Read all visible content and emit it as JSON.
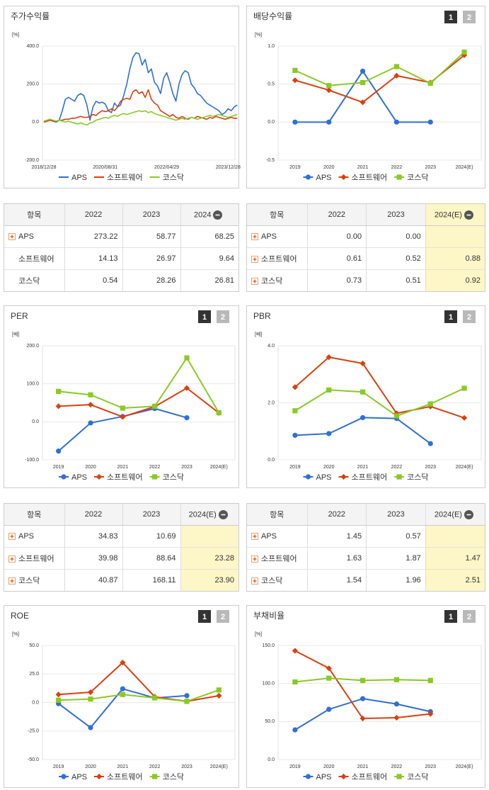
{
  "chart_data": [
    {
      "type": "line",
      "title": "주가수익률",
      "unit": "[%]",
      "categories": [
        "2018/12/28",
        null,
        null,
        null,
        null,
        null,
        null,
        null,
        null,
        null,
        null,
        null,
        null,
        null,
        null,
        null,
        null,
        null,
        null,
        null,
        "2020/08/31",
        null,
        null,
        null,
        null,
        null,
        null,
        null,
        null,
        null,
        null,
        null,
        null,
        null,
        null,
        null,
        null,
        null,
        null,
        null,
        "2022/04/29",
        null,
        null,
        null,
        null,
        null,
        null,
        null,
        null,
        null,
        null,
        null,
        null,
        null,
        null,
        null,
        null,
        null,
        null,
        null,
        "2023/12/28",
        null,
        null,
        null
      ],
      "series": [
        {
          "name": "APS",
          "color": "#2f6fd6",
          "values": [
            0,
            5,
            10,
            5,
            0,
            10,
            60,
            120,
            130,
            120,
            110,
            140,
            150,
            140,
            90,
            10,
            80,
            110,
            100,
            105,
            95,
            60,
            50,
            100,
            80,
            90,
            140,
            200,
            280,
            340,
            365,
            360,
            300,
            330,
            260,
            280,
            210,
            190,
            150,
            230,
            260,
            210,
            150,
            110,
            200,
            250,
            270,
            260,
            200,
            180,
            150,
            140,
            120,
            100,
            90,
            80,
            70,
            60,
            40,
            50,
            70,
            60,
            80,
            90
          ]
        },
        {
          "name": "소프트웨어",
          "color": "#d9400f",
          "values": [
            0,
            5,
            10,
            5,
            5,
            10,
            10,
            15,
            15,
            20,
            20,
            25,
            30,
            25,
            25,
            30,
            40,
            35,
            50,
            60,
            55,
            60,
            70,
            60,
            80,
            110,
            120,
            125,
            120,
            160,
            170,
            150,
            160,
            130,
            170,
            120,
            100,
            90,
            60,
            50,
            40,
            30,
            40,
            25,
            20,
            30,
            20,
            15,
            25,
            20,
            30,
            25,
            20,
            15,
            25,
            20,
            30,
            25,
            20,
            15,
            20,
            25,
            20,
            20
          ]
        },
        {
          "name": "코스닥",
          "color": "#8ac926",
          "values": [
            5,
            10,
            15,
            10,
            5,
            10,
            5,
            0,
            5,
            0,
            -5,
            -10,
            -5,
            -10,
            -15,
            -5,
            0,
            10,
            15,
            20,
            25,
            20,
            30,
            35,
            30,
            40,
            45,
            40,
            45,
            50,
            55,
            60,
            55,
            60,
            50,
            55,
            45,
            40,
            35,
            30,
            25,
            20,
            15,
            10,
            15,
            20,
            15,
            20,
            25,
            20,
            15,
            20,
            25,
            30,
            35,
            30,
            35,
            40,
            35,
            30,
            25,
            30,
            35,
            40
          ]
        }
      ],
      "ylim": [
        -200,
        400
      ],
      "yticks": [
        {
          "value": -200,
          "label": "-200.0"
        },
        {
          "value": 0,
          "label": "0.0"
        },
        {
          "value": 200,
          "label": "200.0"
        },
        {
          "value": 400,
          "label": "400.0"
        }
      ],
      "grid": true
    },
    {
      "type": "line",
      "title": "배당수익률",
      "unit": "[%]",
      "buttons": [
        "1",
        "2"
      ],
      "categories": [
        "2019",
        "2020",
        "2021",
        "2022",
        "2023",
        "2024(E)"
      ],
      "series": [
        {
          "name": "APS",
          "color": "#2f6fd6",
          "marker": "circle",
          "values": [
            0.0,
            0.0,
            0.67,
            0.0,
            0.0,
            null
          ]
        },
        {
          "name": "소프트웨어",
          "color": "#d9400f",
          "marker": "diamond",
          "values": [
            0.55,
            0.42,
            0.26,
            0.61,
            0.52,
            0.88
          ]
        },
        {
          "name": "코스닥",
          "color": "#8ac926",
          "marker": "square",
          "values": [
            0.68,
            0.48,
            0.52,
            0.73,
            0.51,
            0.92
          ]
        }
      ],
      "ylim": [
        -0.5,
        1.0
      ],
      "yticks": [
        -0.5,
        {
          "value": 0,
          "label": "0.0"
        },
        0.5,
        {
          "value": 1,
          "label": "1.0"
        }
      ],
      "grid": true
    },
    {
      "type": "line",
      "title": "PER",
      "unit": "[배]",
      "buttons": [
        "1",
        "2"
      ],
      "categories": [
        "2019",
        "2020",
        "2021",
        "2022",
        "2023",
        "2024(E)"
      ],
      "series": [
        {
          "name": "APS",
          "color": "#2f6fd6",
          "marker": "circle",
          "values": [
            -77,
            -3,
            14,
            34.83,
            10.69,
            null
          ]
        },
        {
          "name": "소프트웨어",
          "color": "#d9400f",
          "marker": "diamond",
          "values": [
            41,
            45,
            13,
            39.98,
            88.64,
            23.28
          ]
        },
        {
          "name": "코스닥",
          "color": "#8ac926",
          "marker": "square",
          "values": [
            80,
            71,
            36,
            40.87,
            168.11,
            23.9
          ]
        }
      ],
      "ylim": [
        -100,
        200
      ],
      "yticks": [
        {
          "value": -100,
          "label": "-100.0"
        },
        {
          "value": 0,
          "label": "0.0"
        },
        {
          "value": 100,
          "label": "100.0"
        },
        {
          "value": 200,
          "label": "200.0"
        }
      ],
      "grid": true
    },
    {
      "type": "line",
      "title": "PBR",
      "unit": "[배]",
      "buttons": [
        "1",
        "2"
      ],
      "categories": [
        "2019",
        "2020",
        "2021",
        "2022",
        "2023",
        "2024(E)"
      ],
      "series": [
        {
          "name": "APS",
          "color": "#2f6fd6",
          "marker": "circle",
          "values": [
            0.86,
            0.92,
            1.48,
            1.45,
            0.57,
            null
          ]
        },
        {
          "name": "소프트웨어",
          "color": "#d9400f",
          "marker": "diamond",
          "values": [
            2.55,
            3.6,
            3.38,
            1.63,
            1.87,
            1.47
          ]
        },
        {
          "name": "코스닥",
          "color": "#8ac926",
          "marker": "square",
          "values": [
            1.72,
            2.45,
            2.38,
            1.54,
            1.96,
            2.51
          ]
        }
      ],
      "ylim": [
        0,
        4
      ],
      "yticks": [
        {
          "value": 0,
          "label": "0.0"
        },
        {
          "value": 2,
          "label": "2.0"
        },
        {
          "value": 4,
          "label": "4.0"
        }
      ],
      "grid": true
    },
    {
      "type": "line",
      "title": "ROE",
      "unit": "[%]",
      "buttons": [
        "1",
        "2"
      ],
      "categories": [
        "2019",
        "2020",
        "2021",
        "2022",
        "2023",
        "2024(E)"
      ],
      "series": [
        {
          "name": "APS",
          "color": "#2f6fd6",
          "marker": "circle",
          "values": [
            -1,
            -22,
            12,
            4,
            6,
            null
          ]
        },
        {
          "name": "소프트웨어",
          "color": "#d9400f",
          "marker": "diamond",
          "values": [
            7,
            9,
            35,
            5,
            1,
            6
          ]
        },
        {
          "name": "코스닥",
          "color": "#8ac926",
          "marker": "square",
          "values": [
            2,
            3,
            7,
            4,
            1,
            11
          ]
        }
      ],
      "ylim": [
        -50,
        50
      ],
      "yticks": [
        {
          "value": -50,
          "label": "-50.0"
        },
        {
          "value": -25,
          "label": "-25.0"
        },
        {
          "value": 0,
          "label": "0.0"
        },
        {
          "value": 25,
          "label": "25.0"
        },
        {
          "value": 50,
          "label": "50.0"
        }
      ],
      "grid": true
    },
    {
      "type": "line",
      "title": "부채비율",
      "unit": "[%]",
      "buttons": [
        "1",
        "2"
      ],
      "categories": [
        "2019",
        "2020",
        "2021",
        "2022",
        "2023",
        "2024(E)"
      ],
      "series": [
        {
          "name": "APS",
          "color": "#2f6fd6",
          "marker": "circle",
          "values": [
            39,
            66,
            80,
            73,
            63,
            null
          ]
        },
        {
          "name": "소프트웨어",
          "color": "#d9400f",
          "marker": "diamond",
          "values": [
            143,
            120,
            54,
            55,
            60,
            null
          ]
        },
        {
          "name": "코스닥",
          "color": "#8ac926",
          "marker": "square",
          "values": [
            102,
            107,
            104,
            105,
            104,
            null
          ]
        }
      ],
      "ylim": [
        0,
        150
      ],
      "yticks": [
        {
          "value": 0,
          "label": "0.0"
        },
        {
          "value": 50,
          "label": "50.0"
        },
        {
          "value": 100,
          "label": "100.0"
        },
        {
          "value": 150,
          "label": "150.0"
        }
      ],
      "grid": true
    }
  ],
  "tables": [
    {
      "columns": [
        "항목",
        "2022",
        "2023",
        "2024"
      ],
      "rows": [
        [
          "APS",
          "273.22",
          "58.77",
          "68.25"
        ],
        [
          "소프트웨어",
          "14.13",
          "26.97",
          "9.64"
        ],
        [
          "코스닥",
          "0.54",
          "28.26",
          "26.81"
        ]
      ]
    },
    {
      "columns": [
        "항목",
        "2022",
        "2023",
        "2024(E)"
      ],
      "rows": [
        [
          "APS",
          "0.00",
          "0.00",
          null
        ],
        [
          "소프트웨어",
          "0.61",
          "0.52",
          "0.88"
        ],
        [
          "코스닥",
          "0.73",
          "0.51",
          "0.92"
        ]
      ]
    },
    {
      "columns": [
        "항목",
        "2022",
        "2023",
        "2024(E)"
      ],
      "rows": [
        [
          "APS",
          "34.83",
          "10.69",
          null
        ],
        [
          "소프트웨어",
          "39.98",
          "88.64",
          "23.28"
        ],
        [
          "코스닥",
          "40.87",
          "168.11",
          "23.90"
        ]
      ]
    },
    {
      "columns": [
        "항목",
        "2022",
        "2023",
        "2024(E)"
      ],
      "rows": [
        [
          "APS",
          "1.45",
          "0.57",
          null
        ],
        [
          "소프트웨어",
          "1.63",
          "1.87",
          "1.47"
        ],
        [
          "코스닥",
          "1.54",
          "1.96",
          "2.51"
        ]
      ]
    }
  ]
}
